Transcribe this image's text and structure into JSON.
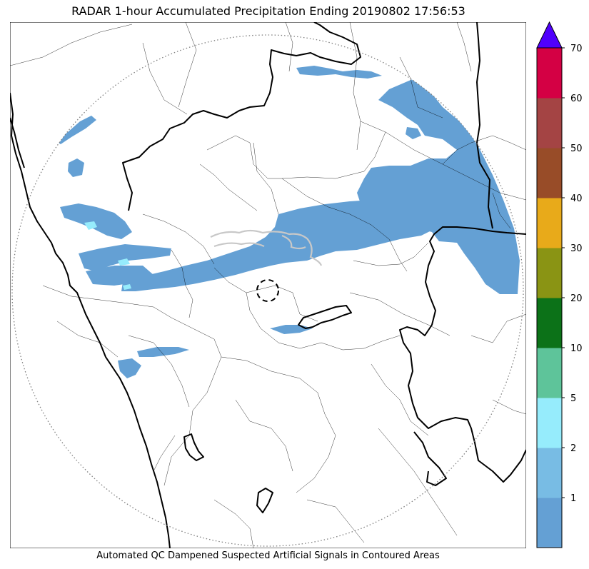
{
  "title": "RADAR 1-hour Accumulated Precipitation Ending 20190802 17:56:53",
  "footer": "Automated QC Dampened Suspected Artificial Signals in Contoured Areas",
  "colorbar": {
    "bins": [
      {
        "from": 0,
        "to": 1,
        "color": "#64a0d4"
      },
      {
        "from": 1,
        "to": 2,
        "color": "#78bce4"
      },
      {
        "from": 2,
        "to": 5,
        "color": "#96ecfc"
      },
      {
        "from": 5,
        "to": 10,
        "color": "#5ec49a"
      },
      {
        "from": 10,
        "to": 20,
        "color": "#0c7218"
      },
      {
        "from": 20,
        "to": 30,
        "color": "#8a9414"
      },
      {
        "from": 30,
        "to": 40,
        "color": "#e8aa1a"
      },
      {
        "from": 40,
        "to": 50,
        "color": "#984c28"
      },
      {
        "from": 50,
        "to": 60,
        "color": "#a44444"
      },
      {
        "from": 60,
        "to": 70,
        "color": "#d40044"
      }
    ],
    "extend_color": "#5000fc",
    "tick_labels": [
      "1",
      "2",
      "5",
      "10",
      "20",
      "30",
      "40",
      "50",
      "60",
      "70"
    ]
  }
}
